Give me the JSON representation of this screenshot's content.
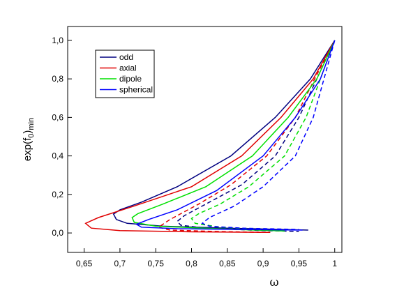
{
  "chart_data": {
    "type": "line",
    "x_label": "ω",
    "y_label_parts": [
      "exp(f",
      "0",
      ")",
      "min"
    ],
    "xlim": [
      0.627,
      1.01
    ],
    "ylim": [
      -0.101,
      1.072
    ],
    "xticks": [
      {
        "value": 0.65,
        "label": "0,65"
      },
      {
        "value": 0.7,
        "label": "0,7"
      },
      {
        "value": 0.75,
        "label": "0,75"
      },
      {
        "value": 0.8,
        "label": "0,8"
      },
      {
        "value": 0.85,
        "label": "0,85"
      },
      {
        "value": 0.9,
        "label": "0,9"
      },
      {
        "value": 0.95,
        "label": "0,95"
      },
      1
    ],
    "yticks": [
      {
        "value": 0,
        "label": "0,0"
      },
      {
        "value": 0.2,
        "label": "0,2"
      },
      {
        "value": 0.4,
        "label": "0,4"
      },
      {
        "value": 0.6,
        "label": "0,6"
      },
      {
        "value": 0.8,
        "label": "0,8"
      },
      {
        "value": 1,
        "label": "1,0"
      }
    ],
    "legend": "upper-left",
    "series": [
      {
        "name": "odd",
        "color": "#000080",
        "branches": [
          {
            "style": "solid",
            "x": [
              1,
              0.966,
              0.917,
              0.855,
              0.78,
              0.73,
              0.7,
              0.691,
              0.695,
              0.71,
              0.76,
              0.85,
              0.963
            ],
            "values": [
              1,
              0.8,
              0.6,
              0.4,
              0.24,
              0.16,
              0.12,
              0.098,
              0.07,
              0.05,
              0.035,
              0.025,
              0.015
            ]
          },
          {
            "style": "dashed",
            "x": [
              1,
              0.975,
              0.95,
              0.917,
              0.87,
              0.83,
              0.79,
              0.78,
              0.785,
              0.82,
              0.9,
              0.95
            ],
            "values": [
              1,
              0.8,
              0.6,
              0.4,
              0.25,
              0.17,
              0.09,
              0.06,
              0.04,
              0.025,
              0.012,
              0.008
            ]
          }
        ]
      },
      {
        "name": "axial",
        "color": "#e00000",
        "branches": [
          {
            "style": "solid",
            "x": [
              1,
              0.97,
              0.925,
              0.87,
              0.8,
              0.72,
              0.67,
              0.652,
              0.66,
              0.7,
              0.8,
              0.91
            ],
            "values": [
              1,
              0.8,
              0.6,
              0.4,
              0.24,
              0.14,
              0.08,
              0.05,
              0.025,
              0.012,
              0.006,
              0.003
            ]
          },
          {
            "style": "dashed",
            "x": [
              1,
              0.972,
              0.945,
              0.905,
              0.855,
              0.81,
              0.77,
              0.754,
              0.77,
              0.83,
              0.9
            ],
            "values": [
              1,
              0.8,
              0.6,
              0.4,
              0.25,
              0.15,
              0.07,
              0.03,
              0.015,
              0.008,
              0.003
            ]
          }
        ]
      },
      {
        "name": "dipole",
        "color": "#00e000",
        "branches": [
          {
            "style": "solid",
            "x": [
              1,
              0.975,
              0.935,
              0.885,
              0.82,
              0.76,
              0.725,
              0.717,
              0.72,
              0.75,
              0.85,
              0.93
            ],
            "values": [
              1,
              0.8,
              0.6,
              0.4,
              0.24,
              0.15,
              0.1,
              0.08,
              0.055,
              0.035,
              0.02,
              0.01
            ]
          },
          {
            "style": "dashed",
            "x": [
              1,
              0.98,
              0.96,
              0.93,
              0.88,
              0.84,
              0.81,
              0.8,
              0.805,
              0.84,
              0.9,
              0.93
            ],
            "values": [
              1,
              0.8,
              0.6,
              0.4,
              0.24,
              0.15,
              0.1,
              0.075,
              0.05,
              0.03,
              0.018,
              0.012
            ]
          }
        ]
      },
      {
        "name": "spherical",
        "color": "#0000ff",
        "branches": [
          {
            "style": "solid",
            "x": [
              1,
              0.98,
              0.945,
              0.9,
              0.835,
              0.78,
              0.74,
              0.723,
              0.73,
              0.78,
              0.87,
              0.955
            ],
            "values": [
              1,
              0.8,
              0.6,
              0.4,
              0.22,
              0.12,
              0.07,
              0.045,
              0.03,
              0.022,
              0.018,
              0.015
            ]
          },
          {
            "style": "dashed",
            "x": [
              1,
              0.985,
              0.97,
              0.945,
              0.9,
              0.86,
              0.825,
              0.815,
              0.825,
              0.87,
              0.95
            ],
            "values": [
              1,
              0.8,
              0.6,
              0.4,
              0.24,
              0.14,
              0.08,
              0.05,
              0.035,
              0.025,
              0.018
            ]
          }
        ]
      }
    ]
  }
}
